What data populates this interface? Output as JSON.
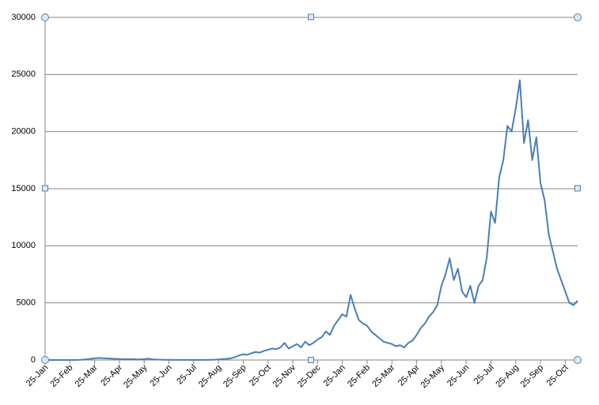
{
  "chart_data": {
    "type": "line",
    "color": "#4a7ebb",
    "grid": true,
    "ylim": [
      0,
      30000
    ],
    "yticks": [
      0,
      5000,
      10000,
      15000,
      20000,
      25000,
      30000
    ],
    "categories": [
      "25-Jan",
      null,
      null,
      null,
      null,
      null,
      "25-Feb",
      null,
      null,
      null,
      null,
      null,
      "25-Mar",
      null,
      null,
      null,
      null,
      null,
      "25-Apr",
      null,
      null,
      null,
      null,
      null,
      "25-May",
      null,
      null,
      null,
      null,
      null,
      "25-Jun",
      null,
      null,
      null,
      null,
      null,
      "25-Jul",
      null,
      null,
      null,
      null,
      null,
      "25-Aug",
      null,
      null,
      null,
      null,
      null,
      "25-Sep",
      null,
      null,
      null,
      null,
      null,
      "25-Oct",
      null,
      null,
      null,
      null,
      null,
      "25-Nov",
      null,
      null,
      null,
      null,
      null,
      "25-Dec",
      null,
      null,
      null,
      null,
      null,
      "25-Jan",
      null,
      null,
      null,
      null,
      null,
      "25-Feb",
      null,
      null,
      null,
      null,
      null,
      "25-Mar",
      null,
      null,
      null,
      null,
      null,
      "25-Apr",
      null,
      null,
      null,
      null,
      null,
      "25-May",
      null,
      null,
      null,
      null,
      null,
      "25-Jun",
      null,
      null,
      null,
      null,
      null,
      "25-Jul",
      null,
      null,
      null,
      null,
      null,
      "25-Aug",
      null,
      null,
      null,
      null,
      null,
      "25-Sep",
      null,
      null,
      null,
      null,
      null,
      "25-Oct",
      null,
      null,
      null
    ],
    "values": [
      0,
      0,
      0,
      0,
      0,
      0,
      0,
      0,
      10,
      30,
      60,
      100,
      150,
      180,
      160,
      140,
      120,
      100,
      90,
      80,
      70,
      80,
      60,
      50,
      80,
      120,
      60,
      40,
      30,
      20,
      20,
      10,
      10,
      10,
      10,
      10,
      10,
      10,
      10,
      10,
      20,
      30,
      50,
      80,
      100,
      150,
      250,
      400,
      500,
      450,
      600,
      700,
      650,
      800,
      900,
      1000,
      950,
      1100,
      1500,
      1000,
      1200,
      1400,
      1100,
      1600,
      1300,
      1500,
      1800,
      2000,
      2500,
      2200,
      3000,
      3500,
      4000,
      3800,
      5700,
      4500,
      3500,
      3200,
      3000,
      2500,
      2200,
      1900,
      1600,
      1500,
      1400,
      1200,
      1300,
      1100,
      1500,
      1700,
      2200,
      2800,
      3200,
      3800,
      4200,
      4800,
      6500,
      7500,
      8900,
      7000,
      8000,
      6000,
      5500,
      6500,
      5000,
      6500,
      7000,
      9000,
      13000,
      12000,
      16000,
      17500,
      20500,
      20000,
      22000,
      24500,
      19000,
      21000,
      17500,
      19500,
      15500,
      14000,
      11000,
      9500,
      8000,
      7000,
      6000,
      5000,
      4800,
      5200
    ]
  }
}
